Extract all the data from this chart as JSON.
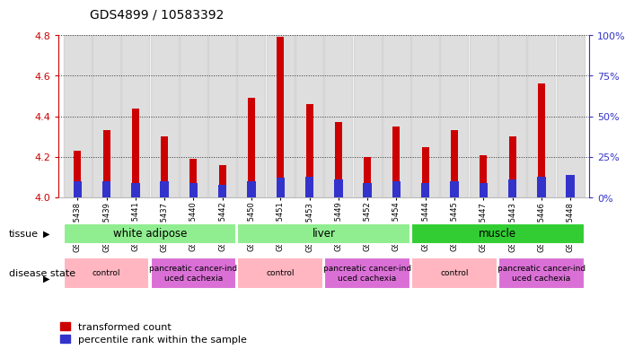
{
  "title": "GDS4899 / 10583392",
  "samples": [
    "GSM1255438",
    "GSM1255439",
    "GSM1255441",
    "GSM1255437",
    "GSM1255440",
    "GSM1255442",
    "GSM1255450",
    "GSM1255451",
    "GSM1255453",
    "GSM1255449",
    "GSM1255452",
    "GSM1255454",
    "GSM1255444",
    "GSM1255445",
    "GSM1255447",
    "GSM1255443",
    "GSM1255446",
    "GSM1255448"
  ],
  "red_values": [
    4.23,
    4.33,
    4.44,
    4.3,
    4.19,
    4.16,
    4.49,
    4.79,
    4.46,
    4.37,
    4.2,
    4.35,
    4.25,
    4.33,
    4.21,
    4.3,
    4.56,
    4.01
  ],
  "blue_percentiles": [
    10,
    10,
    9,
    10,
    9,
    8,
    10,
    12,
    13,
    11,
    9,
    10,
    9,
    10,
    9,
    11,
    13,
    14
  ],
  "ylim_left": [
    4.0,
    4.8
  ],
  "ylim_right": [
    0,
    100
  ],
  "yticks_left": [
    4.0,
    4.2,
    4.4,
    4.6,
    4.8
  ],
  "yticks_right": [
    0,
    25,
    50,
    75,
    100
  ],
  "tissue_groups": [
    {
      "label": "white adipose",
      "start": 0,
      "end": 6,
      "color": "#90EE90"
    },
    {
      "label": "liver",
      "start": 6,
      "end": 12,
      "color": "#90EE90"
    },
    {
      "label": "muscle",
      "start": 12,
      "end": 18,
      "color": "#32CD32"
    }
  ],
  "disease_groups": [
    {
      "label": "control",
      "start": 0,
      "end": 3,
      "color": "#FFB6C1"
    },
    {
      "label": "pancreatic cancer-ind\nuced cachexia",
      "start": 3,
      "end": 6,
      "color": "#DA70D6"
    },
    {
      "label": "control",
      "start": 6,
      "end": 9,
      "color": "#FFB6C1"
    },
    {
      "label": "pancreatic cancer-ind\nuced cachexia",
      "start": 9,
      "end": 12,
      "color": "#DA70D6"
    },
    {
      "label": "control",
      "start": 12,
      "end": 15,
      "color": "#FFB6C1"
    },
    {
      "label": "pancreatic cancer-ind\nuced cachexia",
      "start": 15,
      "end": 18,
      "color": "#DA70D6"
    }
  ],
  "red_color": "#CC0000",
  "blue_color": "#3333CC",
  "bg_color": "#FFFFFF",
  "axis_color_left": "#CC0000",
  "axis_color_right": "#3333CC",
  "bar_bg_color": "#C8C8C8",
  "grid_color": "#333333"
}
